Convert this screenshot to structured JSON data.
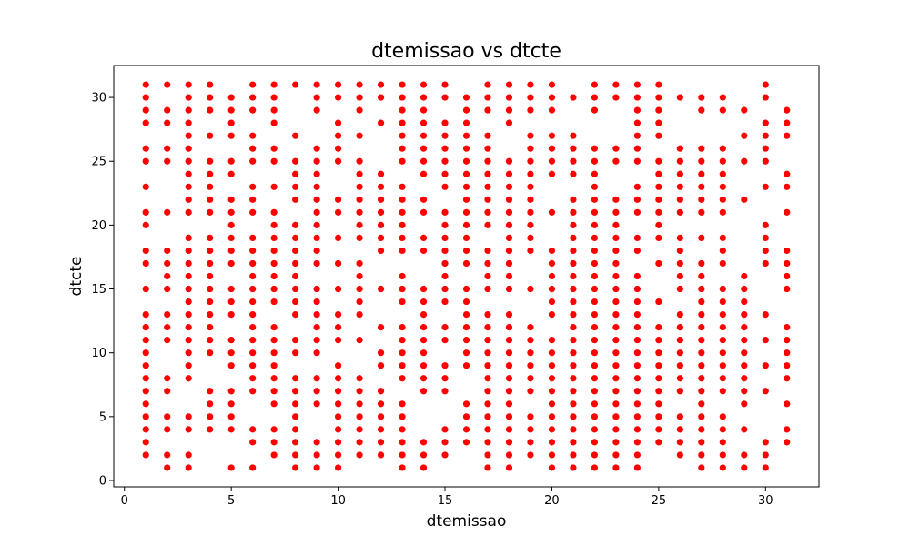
{
  "chart_data": {
    "type": "scatter",
    "title": "dtemissao vs dtcte",
    "xlabel": "dtemissao",
    "ylabel": "dtcte",
    "xlim": [
      -0.5,
      32.5
    ],
    "ylim": [
      -0.5,
      32.5
    ],
    "xticks": [
      0,
      5,
      10,
      15,
      20,
      25,
      30
    ],
    "yticks": [
      0,
      5,
      10,
      15,
      20,
      25,
      30
    ],
    "grid": false,
    "marker_color": "#ff0000",
    "points_by_x": {
      "1": [
        2,
        3,
        4,
        5,
        6,
        7,
        8,
        9,
        10,
        11,
        12,
        13,
        15,
        17,
        18,
        20,
        21,
        23,
        25,
        26,
        28,
        29,
        30,
        31
      ],
      "2": [
        1,
        2,
        4,
        5,
        7,
        8,
        11,
        12,
        13,
        15,
        16,
        17,
        18,
        21,
        25,
        26,
        28,
        29,
        31
      ],
      "3": [
        1,
        2,
        4,
        5,
        8,
        9,
        10,
        11,
        12,
        13,
        14,
        15,
        16,
        17,
        18,
        19,
        21,
        22,
        23,
        24,
        25,
        26,
        27,
        28,
        29,
        30,
        31
      ],
      "4": [
        4,
        5,
        6,
        7,
        10,
        11,
        12,
        13,
        14,
        15,
        16,
        17,
        18,
        19,
        21,
        22,
        23,
        24,
        25,
        27,
        29,
        30,
        31
      ],
      "5": [
        1,
        4,
        5,
        6,
        7,
        9,
        10,
        11,
        13,
        14,
        15,
        17,
        18,
        19,
        20,
        21,
        22,
        24,
        25,
        27,
        28,
        29,
        30
      ],
      "6": [
        1,
        3,
        4,
        7,
        8,
        9,
        10,
        11,
        12,
        13,
        14,
        15,
        16,
        17,
        18,
        19,
        21,
        22,
        23,
        25,
        26,
        27,
        29,
        30,
        31
      ],
      "7": [
        2,
        3,
        4,
        6,
        7,
        8,
        9,
        10,
        11,
        12,
        14,
        15,
        16,
        17,
        18,
        19,
        20,
        21,
        23,
        25,
        26,
        28,
        29,
        30,
        31
      ],
      "8": [
        1,
        2,
        3,
        4,
        5,
        6,
        7,
        8,
        10,
        11,
        13,
        14,
        15,
        16,
        17,
        18,
        19,
        20,
        22,
        23,
        24,
        25,
        27,
        31
      ],
      "9": [
        1,
        2,
        3,
        6,
        7,
        8,
        10,
        11,
        12,
        13,
        14,
        15,
        17,
        18,
        19,
        20,
        21,
        22,
        23,
        24,
        25,
        26,
        29,
        30,
        31
      ],
      "10": [
        1,
        2,
        3,
        4,
        5,
        6,
        7,
        8,
        9,
        11,
        12,
        13,
        15,
        17,
        19,
        21,
        22,
        25,
        26,
        27,
        28,
        30,
        31
      ],
      "11": [
        2,
        3,
        4,
        5,
        6,
        7,
        8,
        11,
        13,
        14,
        15,
        16,
        17,
        19,
        20,
        21,
        22,
        23,
        24,
        25,
        27,
        29,
        30,
        31
      ],
      "12": [
        2,
        3,
        4,
        5,
        6,
        7,
        9,
        10,
        12,
        15,
        18,
        19,
        20,
        21,
        22,
        23,
        24,
        28,
        30,
        31
      ],
      "13": [
        1,
        2,
        3,
        4,
        5,
        6,
        8,
        9,
        10,
        11,
        12,
        14,
        15,
        16,
        18,
        19,
        20,
        21,
        22,
        23,
        25,
        26,
        27,
        28,
        29,
        30,
        31
      ],
      "14": [
        1,
        2,
        3,
        7,
        8,
        9,
        10,
        11,
        12,
        13,
        14,
        15,
        18,
        19,
        21,
        22,
        24,
        25,
        26,
        27,
        28,
        29,
        30,
        31
      ],
      "15": [
        2,
        3,
        4,
        7,
        8,
        9,
        11,
        12,
        14,
        15,
        16,
        17,
        18,
        19,
        20,
        21,
        23,
        24,
        25,
        26,
        27,
        28,
        30,
        31
      ],
      "16": [
        3,
        4,
        5,
        6,
        9,
        10,
        11,
        12,
        13,
        14,
        15,
        17,
        18,
        19,
        20,
        21,
        22,
        23,
        24,
        25,
        26,
        27,
        28,
        29,
        30
      ],
      "17": [
        1,
        2,
        3,
        4,
        5,
        6,
        7,
        8,
        9,
        10,
        11,
        12,
        13,
        15,
        16,
        17,
        18,
        20,
        21,
        22,
        23,
        24,
        25,
        26,
        27,
        29,
        30,
        31
      ],
      "18": [
        1,
        2,
        3,
        4,
        5,
        6,
        7,
        8,
        9,
        10,
        11,
        12,
        13,
        15,
        16,
        17,
        18,
        19,
        20,
        21,
        22,
        23,
        24,
        25,
        28,
        29,
        30,
        31
      ],
      "19": [
        2,
        3,
        4,
        5,
        7,
        8,
        9,
        10,
        11,
        12,
        15,
        18,
        19,
        20,
        21,
        22,
        23,
        24,
        25,
        26,
        27,
        29,
        30,
        31
      ],
      "20": [
        1,
        2,
        3,
        4,
        5,
        6,
        7,
        8,
        9,
        10,
        11,
        13,
        14,
        15,
        16,
        17,
        18,
        21,
        24,
        25,
        26,
        27,
        29,
        30,
        31
      ],
      "21": [
        1,
        2,
        3,
        4,
        5,
        6,
        7,
        8,
        9,
        10,
        11,
        12,
        13,
        14,
        15,
        16,
        17,
        18,
        19,
        20,
        21,
        22,
        24,
        25,
        26,
        27,
        30
      ],
      "22": [
        1,
        2,
        3,
        4,
        5,
        6,
        7,
        8,
        9,
        10,
        11,
        12,
        13,
        14,
        15,
        16,
        17,
        18,
        19,
        20,
        21,
        22,
        23,
        24,
        25,
        26,
        29,
        30,
        31
      ],
      "23": [
        1,
        2,
        3,
        4,
        5,
        6,
        7,
        8,
        9,
        10,
        11,
        12,
        13,
        14,
        15,
        16,
        17,
        18,
        19,
        20,
        21,
        22,
        25,
        26,
        30,
        31
      ],
      "24": [
        1,
        2,
        3,
        4,
        5,
        6,
        7,
        8,
        9,
        10,
        11,
        12,
        13,
        14,
        15,
        16,
        18,
        19,
        21,
        22,
        23,
        25,
        26,
        27,
        28,
        29,
        30,
        31
      ],
      "25": [
        3,
        4,
        5,
        6,
        7,
        8,
        9,
        10,
        11,
        12,
        14,
        17,
        19,
        20,
        21,
        22,
        23,
        24,
        25,
        27,
        28,
        29,
        30,
        31
      ],
      "26": [
        2,
        3,
        4,
        5,
        7,
        8,
        9,
        10,
        11,
        12,
        13,
        15,
        16,
        17,
        18,
        19,
        21,
        22,
        23,
        24,
        25,
        26,
        30
      ],
      "27": [
        1,
        2,
        3,
        4,
        5,
        6,
        7,
        8,
        9,
        10,
        11,
        12,
        13,
        14,
        15,
        16,
        17,
        19,
        21,
        22,
        23,
        24,
        25,
        26,
        29,
        30
      ],
      "28": [
        1,
        2,
        3,
        4,
        5,
        7,
        8,
        9,
        10,
        11,
        12,
        13,
        14,
        15,
        17,
        18,
        19,
        21,
        22,
        23,
        24,
        25,
        26,
        29,
        30
      ],
      "29": [
        1,
        2,
        4,
        6,
        7,
        8,
        9,
        10,
        11,
        12,
        13,
        14,
        15,
        16,
        22,
        25,
        27,
        29
      ],
      "30": [
        1,
        2,
        3,
        7,
        9,
        11,
        13,
        17,
        18,
        19,
        20,
        23,
        25,
        26,
        27,
        28,
        30,
        31
      ],
      "31": [
        3,
        4,
        6,
        8,
        9,
        10,
        11,
        12,
        15,
        16,
        17,
        18,
        21,
        23,
        24,
        27,
        28,
        29
      ]
    }
  }
}
